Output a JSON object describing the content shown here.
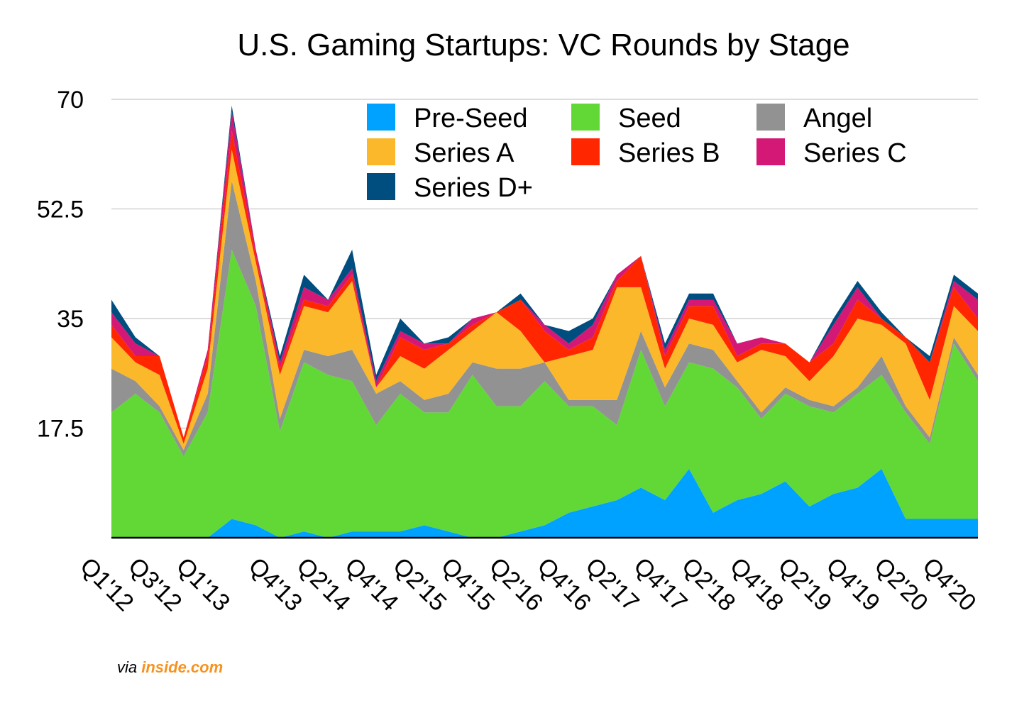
{
  "credit": {
    "prefix": "via",
    "brand": "inside.com"
  },
  "chart_data": {
    "type": "area",
    "stacked": true,
    "title": "U.S. Gaming Startups: VC Rounds by Stage",
    "xlabel": "",
    "ylabel": "",
    "ylim": [
      0,
      70
    ],
    "yticks": [
      "17.5",
      "35",
      "52.5",
      "70"
    ],
    "grid": true,
    "legend_position": "top-right",
    "x": [
      "Q1'12",
      "Q2'12",
      "Q3'12",
      "Q4'12",
      "Q1'13",
      "Q2'13",
      "Q3'13",
      "Q4'13",
      "Q1'14",
      "Q2'14",
      "Q3'14",
      "Q4'14",
      "Q1'15",
      "Q2'15",
      "Q3'15",
      "Q4'15",
      "Q1'16",
      "Q2'16",
      "Q3'16",
      "Q4'16",
      "Q1'17",
      "Q2'17",
      "Q3'17",
      "Q4'17",
      "Q1'18",
      "Q2'18",
      "Q3'18",
      "Q4'18",
      "Q1'19",
      "Q2'19",
      "Q3'19",
      "Q4'19",
      "Q1'20",
      "Q2'20",
      "Q3'20",
      "Q4'20",
      "Q1'21"
    ],
    "xtick_labels": [
      "Q1'12",
      "Q3'12",
      "Q1'13",
      "Q4'13",
      "Q2'14",
      "Q4'14",
      "Q2'15",
      "Q4'15",
      "Q2'16",
      "Q4'16",
      "Q2'17",
      "Q4'17",
      "Q2'18",
      "Q4'18",
      "Q2'19",
      "Q4'19",
      "Q2'20",
      "Q4'20"
    ],
    "xtick_index": [
      0,
      2,
      4,
      7,
      9,
      11,
      13,
      15,
      17,
      19,
      21,
      23,
      25,
      27,
      29,
      31,
      33,
      35
    ],
    "series": [
      {
        "name": "Pre-Seed",
        "color": "#00a2ff",
        "values": [
          0,
          0,
          0,
          0,
          0,
          3,
          2,
          0,
          1,
          0,
          1,
          1,
          1,
          2,
          1,
          0,
          0,
          1,
          2,
          4,
          5,
          6,
          8,
          6,
          11,
          4,
          6,
          7,
          9,
          5,
          7,
          8,
          11,
          3,
          3,
          3,
          3
        ]
      },
      {
        "name": "Seed",
        "color": "#61d836",
        "values": [
          20,
          23,
          20,
          13,
          20,
          43,
          35,
          17,
          27,
          26,
          24,
          17,
          22,
          18,
          19,
          26,
          21,
          20,
          23,
          17,
          16,
          12,
          22,
          15,
          17,
          23,
          18,
          12,
          14,
          16,
          13,
          15,
          15,
          17,
          12,
          28,
          22
        ]
      },
      {
        "name": "Angel",
        "color": "#929292",
        "values": [
          7,
          2,
          1,
          1,
          3,
          11,
          4,
          2,
          2,
          3,
          5,
          5,
          2,
          2,
          3,
          2,
          6,
          6,
          3,
          1,
          1,
          4,
          3,
          3,
          3,
          3,
          1,
          1,
          1,
          1,
          1,
          1,
          3,
          1,
          1,
          1,
          1
        ]
      },
      {
        "name": "Series A",
        "color": "#fbb82b",
        "values": [
          5,
          3,
          5,
          1,
          4,
          5,
          3,
          7,
          7,
          7,
          11,
          1,
          4,
          5,
          7,
          5,
          9,
          6,
          0,
          7,
          8,
          18,
          7,
          3,
          4,
          4,
          3,
          10,
          5,
          3,
          8,
          11,
          5,
          10,
          6,
          5,
          7
        ]
      },
      {
        "name": "Series B",
        "color": "#ff2600",
        "values": [
          2,
          1,
          3,
          1,
          2,
          3,
          1,
          1,
          1,
          1,
          1,
          0,
          3,
          3,
          1,
          1,
          0,
          5,
          5,
          1,
          2,
          1,
          5,
          2,
          2,
          3,
          1,
          1,
          2,
          3,
          2,
          3,
          1,
          1,
          6,
          3,
          2
        ]
      },
      {
        "name": "Series C",
        "color": "#d31876",
        "values": [
          2,
          2,
          0,
          0,
          1,
          3,
          1,
          1,
          2,
          1,
          1,
          1,
          1,
          1,
          0,
          1,
          0,
          0,
          1,
          1,
          2,
          1,
          0,
          1,
          1,
          1,
          2,
          1,
          0,
          0,
          3,
          2,
          0,
          0,
          0,
          1,
          3
        ]
      },
      {
        "name": "Series D+",
        "color": "#004d80",
        "values": [
          2,
          1,
          0,
          0,
          0,
          1,
          0,
          1,
          2,
          0,
          3,
          1,
          2,
          0,
          1,
          0,
          0,
          1,
          0,
          2,
          1,
          0,
          0,
          1,
          1,
          1,
          0,
          0,
          0,
          0,
          1,
          1,
          1,
          0,
          1,
          1,
          1
        ]
      }
    ]
  }
}
